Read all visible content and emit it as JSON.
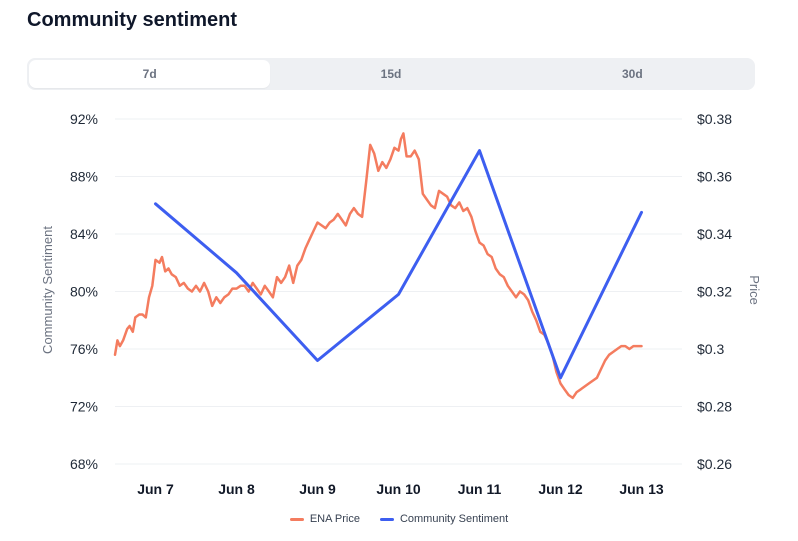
{
  "title": "Community sentiment",
  "tabs": [
    {
      "label": "7d",
      "active": true
    },
    {
      "label": "15d",
      "active": false
    },
    {
      "label": "30d",
      "active": false
    }
  ],
  "colors": {
    "price": "#f47c5f",
    "sentiment": "#3d5ef0",
    "highlight_tick": "#3d5ef0",
    "grid": "#eef0f3"
  },
  "chart_data": {
    "type": "line",
    "title": "Community sentiment",
    "xlabel": "",
    "y_left_label": "Community Sentiment",
    "y_right_label": "Price",
    "y_left_ticks": [
      "92%",
      "88%",
      "84%",
      "80%",
      "76%",
      "72%",
      "68%"
    ],
    "y_right_ticks": [
      "$0.38",
      "$0.36",
      "$0.34",
      "$0.32",
      "$0.3",
      "$0.28",
      "$0.26"
    ],
    "y_left_range": [
      68,
      92
    ],
    "y_right_range": [
      0.26,
      0.38
    ],
    "x_range": [
      6.5,
      13.5
    ],
    "categories": [
      "Jun 7",
      "Jun 8",
      "Jun 9",
      "Jun 10",
      "Jun 11",
      "Jun 12",
      "Jun 13"
    ],
    "highlight_category": "Jun 13",
    "series": [
      {
        "name": "ENA Price",
        "axis": "right",
        "x": [
          6.5,
          6.53,
          6.56,
          6.6,
          6.65,
          6.68,
          6.72,
          6.75,
          6.8,
          6.84,
          6.88,
          6.92,
          6.96,
          7.0,
          7.05,
          7.08,
          7.12,
          7.16,
          7.2,
          7.25,
          7.3,
          7.35,
          7.4,
          7.45,
          7.5,
          7.55,
          7.6,
          7.65,
          7.7,
          7.75,
          7.8,
          7.85,
          7.9,
          7.95,
          8.0,
          8.05,
          8.1,
          8.15,
          8.2,
          8.25,
          8.3,
          8.35,
          8.4,
          8.45,
          8.5,
          8.55,
          8.6,
          8.65,
          8.7,
          8.75,
          8.8,
          8.85,
          8.9,
          8.95,
          9.0,
          9.05,
          9.1,
          9.15,
          9.2,
          9.25,
          9.3,
          9.35,
          9.4,
          9.45,
          9.5,
          9.55,
          9.6,
          9.65,
          9.7,
          9.75,
          9.8,
          9.85,
          9.9,
          9.95,
          10.0,
          10.03,
          10.06,
          10.1,
          10.15,
          10.2,
          10.25,
          10.3,
          10.35,
          10.4,
          10.45,
          10.5,
          10.55,
          10.6,
          10.65,
          10.7,
          10.75,
          10.8,
          10.85,
          10.9,
          10.95,
          11.0,
          11.05,
          11.1,
          11.15,
          11.2,
          11.25,
          11.3,
          11.35,
          11.4,
          11.45,
          11.5,
          11.55,
          11.6,
          11.65,
          11.7,
          11.75,
          11.8,
          11.85,
          11.9,
          11.95,
          12.0,
          12.05,
          12.1,
          12.15,
          12.2,
          12.25,
          12.3,
          12.35,
          12.4,
          12.45,
          12.5,
          12.55,
          12.6,
          12.65,
          12.7,
          12.75,
          12.8,
          12.85,
          12.9,
          12.95,
          13.0
        ],
        "values": [
          0.298,
          0.303,
          0.301,
          0.303,
          0.307,
          0.308,
          0.306,
          0.311,
          0.312,
          0.312,
          0.311,
          0.318,
          0.322,
          0.331,
          0.33,
          0.332,
          0.327,
          0.328,
          0.326,
          0.325,
          0.322,
          0.323,
          0.321,
          0.32,
          0.322,
          0.32,
          0.323,
          0.32,
          0.315,
          0.318,
          0.316,
          0.318,
          0.319,
          0.321,
          0.321,
          0.322,
          0.322,
          0.32,
          0.323,
          0.321,
          0.319,
          0.322,
          0.32,
          0.318,
          0.325,
          0.323,
          0.325,
          0.329,
          0.323,
          0.329,
          0.331,
          0.335,
          0.338,
          0.341,
          0.344,
          0.343,
          0.342,
          0.344,
          0.345,
          0.347,
          0.345,
          0.343,
          0.347,
          0.349,
          0.347,
          0.346,
          0.358,
          0.371,
          0.368,
          0.362,
          0.365,
          0.363,
          0.366,
          0.37,
          0.369,
          0.373,
          0.375,
          0.367,
          0.367,
          0.369,
          0.366,
          0.354,
          0.352,
          0.35,
          0.349,
          0.355,
          0.354,
          0.353,
          0.35,
          0.349,
          0.351,
          0.348,
          0.349,
          0.346,
          0.341,
          0.337,
          0.336,
          0.333,
          0.332,
          0.328,
          0.326,
          0.325,
          0.322,
          0.32,
          0.318,
          0.32,
          0.319,
          0.317,
          0.313,
          0.31,
          0.306,
          0.305,
          0.302,
          0.298,
          0.292,
          0.288,
          0.286,
          0.284,
          0.283,
          0.285,
          0.286,
          0.287,
          0.288,
          0.289,
          0.29,
          0.293,
          0.296,
          0.298,
          0.299,
          0.3,
          0.301,
          0.301,
          0.3,
          0.301,
          0.301,
          0.301
        ]
      },
      {
        "name": "Community Sentiment",
        "axis": "left",
        "x": [
          7,
          8,
          9,
          10,
          11,
          12,
          13
        ],
        "values": [
          86.1,
          81.3,
          75.2,
          79.8,
          89.8,
          74.0,
          85.5
        ]
      }
    ]
  },
  "legend": [
    {
      "label": "ENA Price",
      "color": "#f47c5f"
    },
    {
      "label": "Community Sentiment",
      "color": "#3d5ef0"
    }
  ]
}
